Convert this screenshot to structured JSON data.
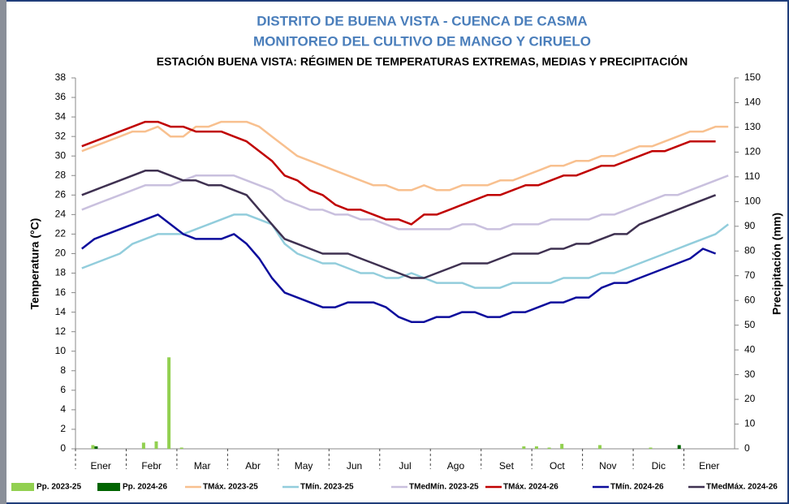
{
  "chart_data": {
    "type": "combo",
    "title": "DISTRITO DE BUENA VISTA - CUENCA DE CASMA",
    "subtitle": "MONITOREO DEL CULTIVO DE MANGO Y CIRUELO",
    "chart_title": "ESTACIÓN BUENA VISTA: RÉGIMEN DE TEMPERATURAS EXTREMAS, MEDIAS Y PRECIPITACIÓN",
    "y_label": "Temperatura (°C)",
    "y2_label": "Precipitación (mm)",
    "ylim": [
      0,
      38
    ],
    "yticks": [
      0,
      2,
      4,
      6,
      8,
      10,
      12,
      14,
      16,
      18,
      20,
      22,
      24,
      26,
      28,
      30,
      32,
      34,
      36,
      38
    ],
    "y2lim": [
      0,
      150
    ],
    "y2ticks": [
      0,
      10,
      20,
      30,
      40,
      50,
      60,
      70,
      80,
      90,
      100,
      110,
      120,
      130,
      140,
      150
    ],
    "categories": [
      "Ener",
      null,
      null,
      null,
      "Febr",
      null,
      null,
      null,
      "Mar",
      null,
      null,
      null,
      "Abr",
      null,
      null,
      null,
      "May",
      null,
      null,
      null,
      "Jun",
      null,
      null,
      null,
      "Jul",
      null,
      null,
      null,
      "Ago",
      null,
      null,
      null,
      "Set",
      null,
      null,
      null,
      "Oct",
      null,
      null,
      null,
      "Nov",
      null,
      null,
      null,
      "Dic",
      null,
      null,
      null,
      "Ener",
      null,
      null,
      null
    ],
    "series": [
      {
        "name": "Pp. 2023-25",
        "type": "bar",
        "axis": "y2",
        "color": "#92d050",
        "values": [
          0,
          1.5,
          0,
          0,
          0,
          2.5,
          3,
          37,
          0.5,
          0,
          0,
          0,
          0,
          0,
          0,
          0,
          0,
          0,
          0,
          0,
          0,
          0,
          0,
          0,
          0,
          0,
          0,
          0,
          0,
          0,
          0,
          0,
          0,
          0,
          0,
          1,
          1,
          0.5,
          2,
          0,
          0,
          1.5,
          0,
          0,
          0,
          0.5,
          0,
          0,
          0,
          0,
          0,
          0
        ]
      },
      {
        "name": "Pp. 2024-26",
        "type": "bar",
        "axis": "y2",
        "color": "#006400",
        "values": [
          0,
          1,
          0,
          0,
          0,
          0,
          0,
          0,
          0,
          0,
          0,
          0,
          0,
          0,
          0,
          0,
          0,
          0,
          0,
          0,
          0,
          0,
          0,
          0,
          0,
          0,
          0,
          0,
          0,
          0,
          0,
          0,
          0,
          0,
          0,
          0,
          0,
          0,
          0,
          0,
          0,
          0,
          0,
          0,
          0,
          0,
          0,
          1.5,
          0,
          0,
          0,
          0
        ]
      },
      {
        "name": "TMáx. 2023-25",
        "type": "line",
        "color": "#f8c08f",
        "values": [
          30.5,
          31,
          31.5,
          32,
          32.5,
          32.5,
          33,
          32,
          32,
          33,
          33,
          33.5,
          33.5,
          33.5,
          33,
          32,
          31,
          30,
          29.5,
          29,
          28.5,
          28,
          27.5,
          27,
          27,
          26.5,
          26.5,
          27,
          26.5,
          26.5,
          27,
          27,
          27,
          27.5,
          27.5,
          28,
          28.5,
          29,
          29,
          29.5,
          29.5,
          30,
          30,
          30.5,
          31,
          31,
          31.5,
          32,
          32.5,
          32.5,
          33,
          33
        ]
      },
      {
        "name": "TMín. 2023-25",
        "type": "line",
        "color": "#92cddc",
        "values": [
          18.5,
          19,
          19.5,
          20,
          21,
          21.5,
          22,
          22,
          22,
          22.5,
          23,
          23.5,
          24,
          24,
          23.5,
          23,
          21,
          20,
          19.5,
          19,
          19,
          18.5,
          18,
          18,
          17.5,
          17.5,
          18,
          17.5,
          17,
          17,
          17,
          16.5,
          16.5,
          16.5,
          17,
          17,
          17,
          17,
          17.5,
          17.5,
          17.5,
          18,
          18,
          18.5,
          19,
          19.5,
          20,
          20.5,
          21,
          21.5,
          22,
          23
        ]
      },
      {
        "name": "TMedMín. 2023-25",
        "type": "line",
        "color": "#c9c0de",
        "values": [
          24.5,
          25,
          25.5,
          26,
          26.5,
          27,
          27,
          27,
          27.5,
          28,
          28,
          28,
          28,
          27.5,
          27,
          26.5,
          25.5,
          25,
          24.5,
          24.5,
          24,
          24,
          23.5,
          23.5,
          23,
          22.5,
          22.5,
          22.5,
          22.5,
          22.5,
          23,
          23,
          22.5,
          22.5,
          23,
          23,
          23,
          23.5,
          23.5,
          23.5,
          23.5,
          24,
          24,
          24.5,
          25,
          25.5,
          26,
          26,
          26.5,
          27,
          27.5,
          28
        ]
      },
      {
        "name": "TMáx. 2024-26",
        "type": "line",
        "color": "#c00000",
        "values": [
          31,
          31.5,
          32,
          32.5,
          33,
          33.5,
          33.5,
          33,
          33,
          32.5,
          32.5,
          32.5,
          32,
          31.5,
          30.5,
          29.5,
          28,
          27.5,
          26.5,
          26,
          25,
          24.5,
          24.5,
          24,
          23.5,
          23.5,
          23,
          24,
          24,
          24.5,
          25,
          25.5,
          26,
          26,
          26.5,
          27,
          27,
          27.5,
          28,
          28,
          28.5,
          29,
          29,
          29.5,
          30,
          30.5,
          30.5,
          31,
          31.5,
          31.5,
          31.5,
          null
        ]
      },
      {
        "name": "TMín. 2024-26",
        "type": "line",
        "color": "#0c0c9c",
        "values": [
          20.5,
          21.5,
          22,
          22.5,
          23,
          23.5,
          24,
          23,
          22,
          21.5,
          21.5,
          21.5,
          22,
          21,
          19.5,
          17.5,
          16,
          15.5,
          15,
          14.5,
          14.5,
          15,
          15,
          15,
          14.5,
          13.5,
          13,
          13,
          13.5,
          13.5,
          14,
          14,
          13.5,
          13.5,
          14,
          14,
          14.5,
          15,
          15,
          15.5,
          15.5,
          16.5,
          17,
          17,
          17.5,
          18,
          18.5,
          19,
          19.5,
          20.5,
          20,
          null
        ]
      },
      {
        "name": "TMedMáx. 2024-26",
        "type": "line",
        "color": "#3f3151",
        "values": [
          26,
          26.5,
          27,
          27.5,
          28,
          28.5,
          28.5,
          28,
          27.5,
          27.5,
          27,
          27,
          26.5,
          26,
          24.5,
          23,
          21.5,
          21,
          20.5,
          20,
          20,
          20,
          19.5,
          19,
          18.5,
          18,
          17.5,
          17.5,
          18,
          18.5,
          19,
          19,
          19,
          19.5,
          20,
          20,
          20,
          20.5,
          20.5,
          21,
          21,
          21.5,
          22,
          22,
          23,
          23.5,
          24,
          24.5,
          25,
          25.5,
          26,
          null
        ]
      }
    ]
  }
}
